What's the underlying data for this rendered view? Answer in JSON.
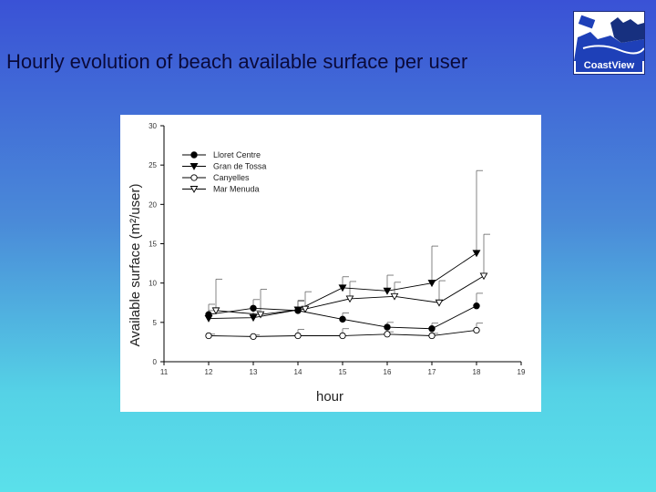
{
  "slide": {
    "title": "Hourly evolution of beach available surface per user",
    "logo_text": "CoastView"
  },
  "chart_data": {
    "type": "line",
    "xlabel": "hour",
    "ylabel": "Available surface (m²/user)",
    "xlim": [
      11,
      19
    ],
    "ylim": [
      0,
      30
    ],
    "x_ticks": [
      11,
      12,
      13,
      14,
      15,
      16,
      17,
      18,
      19
    ],
    "y_ticks": [
      0,
      5,
      10,
      15,
      20,
      25,
      30
    ],
    "legend_position": "top-left",
    "series": [
      {
        "name": "Lloret Centre",
        "marker": "filled-circle",
        "x": [
          12,
          13,
          14,
          15,
          16,
          17,
          18
        ],
        "values": [
          6.0,
          6.8,
          6.5,
          5.4,
          4.4,
          4.2,
          7.1
        ],
        "err": [
          1.3,
          1.1,
          1.3,
          0.8,
          0.6,
          0.7,
          1.6
        ]
      },
      {
        "name": "Gran de Tossa",
        "marker": "filled-triangle-down",
        "x": [
          12,
          13,
          14,
          15,
          16,
          17,
          18
        ],
        "values": [
          5.5,
          5.6,
          6.6,
          9.4,
          9.0,
          10.0,
          13.8
        ],
        "err": [
          1.0,
          0.9,
          1.1,
          1.4,
          2.0,
          4.7,
          10.5
        ]
      },
      {
        "name": "Canyelles",
        "marker": "open-circle",
        "x": [
          12,
          13,
          14,
          15,
          16,
          17,
          18
        ],
        "values": [
          3.3,
          3.2,
          3.3,
          3.3,
          3.5,
          3.3,
          4.0
        ],
        "err": [
          0.2,
          0.2,
          0.8,
          0.9,
          0.3,
          0.3,
          0.9
        ]
      },
      {
        "name": "Mar Menuda",
        "marker": "open-triangle-down",
        "x": [
          12,
          13,
          14,
          15,
          16,
          17,
          18
        ],
        "values": [
          6.5,
          6.0,
          6.7,
          8.0,
          8.3,
          7.5,
          10.9
        ],
        "err": [
          4.0,
          3.2,
          2.2,
          2.2,
          1.8,
          2.8,
          5.3
        ]
      }
    ]
  }
}
